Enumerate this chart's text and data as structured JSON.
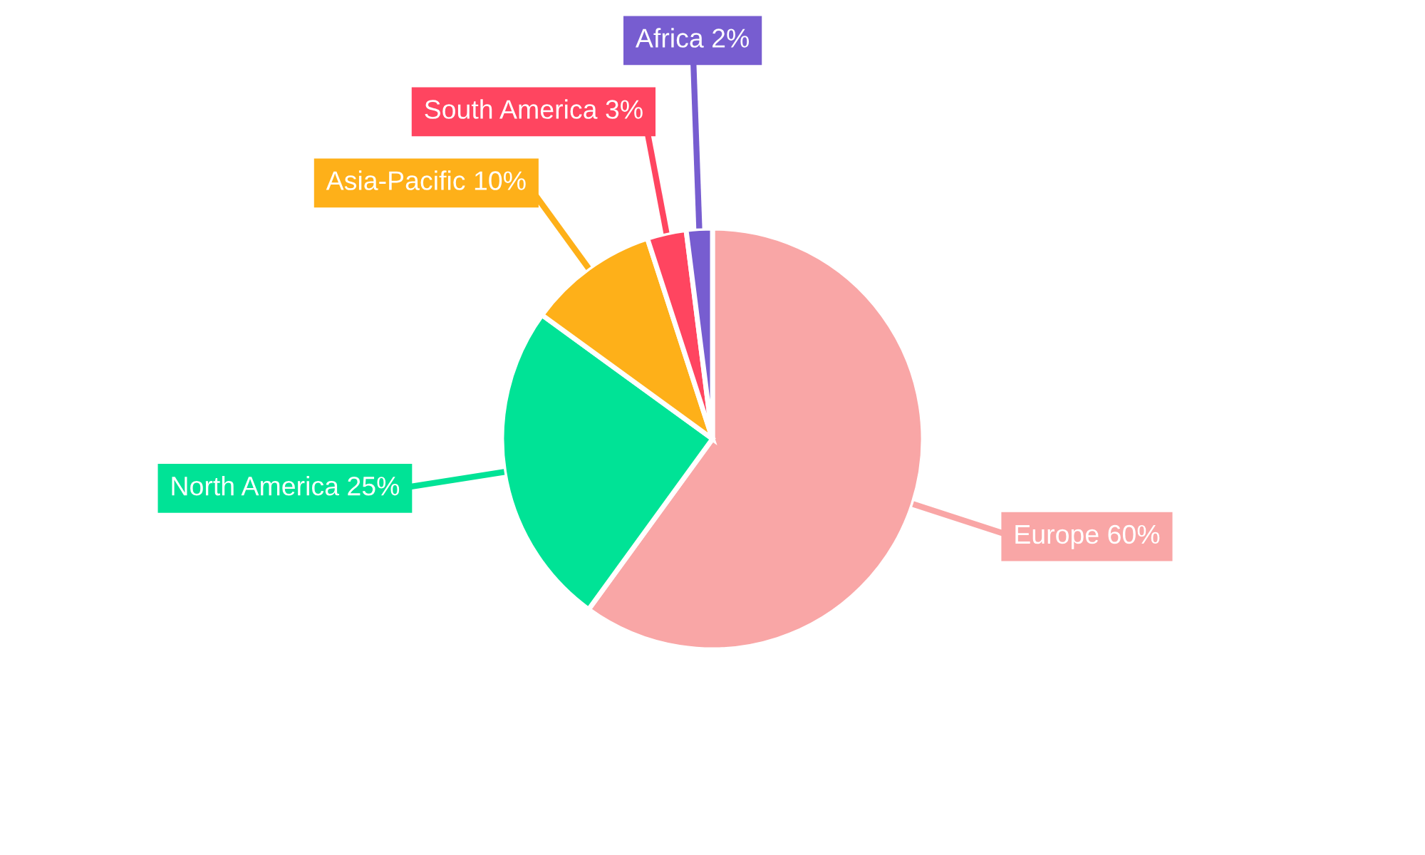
{
  "chart_data": {
    "type": "pie",
    "categories": [
      "Europe",
      "North America",
      "Asia-Pacific",
      "South America",
      "Africa"
    ],
    "values": [
      60,
      25,
      10,
      3,
      2
    ],
    "colors": [
      "#f9a6a6",
      "#00e396",
      "#feb019",
      "#ff4560",
      "#775dd0"
    ],
    "value_labels": [
      "60%",
      "25%",
      "10%",
      "3%",
      "2%"
    ]
  }
}
